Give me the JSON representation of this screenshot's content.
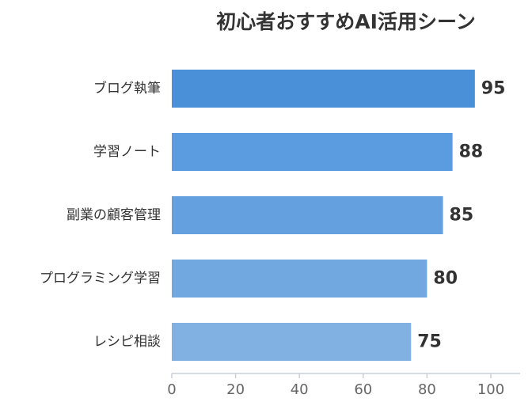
{
  "chart_data": {
    "type": "bar",
    "orientation": "horizontal",
    "title": "初心者おすすめAI活用シーン",
    "categories": [
      "ブログ執筆",
      "学習ノート",
      "副業の顧客管理",
      "プログラミング学習",
      "レシピ相談"
    ],
    "values": [
      95,
      88,
      85,
      80,
      75
    ],
    "value_labels": [
      "95",
      "88",
      "85",
      "80",
      "75"
    ],
    "xlim": [
      0,
      110
    ],
    "x_ticks": [
      0,
      20,
      40,
      60,
      80,
      100
    ],
    "x_tick_labels": [
      "0",
      "20",
      "40",
      "60",
      "80",
      "100"
    ],
    "grid": false,
    "legend": "none",
    "xlabel": "",
    "ylabel": "",
    "colors": {
      "bars": [
        "#4a90d9",
        "#5b9be0",
        "#649fe0",
        "#72a8e0",
        "#80b1e2"
      ],
      "text": "#333333",
      "ticks": "#666666",
      "axis": "#c9cdd8"
    }
  }
}
